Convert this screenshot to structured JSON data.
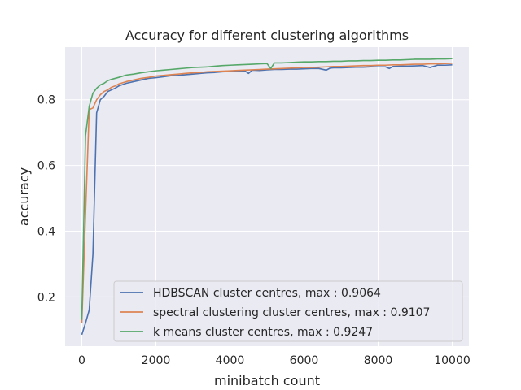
{
  "chart_data": {
    "type": "line",
    "title": "Accuracy for different clustering algorithms",
    "xlabel": "minibatch count",
    "ylabel": "accuracy",
    "xlim": [
      -450,
      10450
    ],
    "ylim": [
      0.05,
      0.96
    ],
    "xticks": [
      0,
      2000,
      4000,
      6000,
      8000,
      10000
    ],
    "xtick_labels": [
      "0",
      "2000",
      "4000",
      "6000",
      "8000",
      "10000"
    ],
    "yticks": [
      0.2,
      0.4,
      0.6,
      0.8
    ],
    "ytick_labels": [
      "0.2",
      "0.4",
      "0.6",
      "0.8"
    ],
    "grid": true,
    "legend_position": "lower-right",
    "series": [
      {
        "name": "HDBSCAN cluster centres, max : 0.9064",
        "color": "#4c72b0",
        "x": [
          0,
          100,
          200,
          300,
          400,
          500,
          600,
          700,
          800,
          900,
          1000,
          1200,
          1400,
          1600,
          1800,
          2000,
          2200,
          2400,
          2600,
          2800,
          3000,
          3200,
          3400,
          3600,
          3800,
          4000,
          4200,
          4400,
          4500,
          4600,
          4800,
          5000,
          5200,
          5400,
          5600,
          5800,
          6000,
          6200,
          6400,
          6600,
          6700,
          6800,
          7000,
          7200,
          7400,
          7600,
          7800,
          8000,
          8200,
          8300,
          8400,
          8600,
          8800,
          9000,
          9200,
          9400,
          9600,
          9800,
          10000
        ],
        "y": [
          0.085,
          0.12,
          0.16,
          0.33,
          0.76,
          0.8,
          0.81,
          0.825,
          0.83,
          0.835,
          0.842,
          0.85,
          0.855,
          0.86,
          0.865,
          0.867,
          0.87,
          0.873,
          0.874,
          0.876,
          0.878,
          0.88,
          0.882,
          0.883,
          0.885,
          0.886,
          0.887,
          0.888,
          0.88,
          0.89,
          0.889,
          0.891,
          0.892,
          0.892,
          0.893,
          0.893,
          0.894,
          0.895,
          0.895,
          0.89,
          0.896,
          0.897,
          0.897,
          0.898,
          0.899,
          0.899,
          0.9,
          0.9,
          0.9,
          0.895,
          0.901,
          0.902,
          0.902,
          0.903,
          0.904,
          0.898,
          0.905,
          0.905,
          0.906
        ]
      },
      {
        "name": "spectral clustering cluster centres, max : 0.9107",
        "color": "#dd8452",
        "x": [
          0,
          100,
          200,
          300,
          400,
          500,
          600,
          700,
          800,
          900,
          1000,
          1200,
          1400,
          1600,
          1800,
          2000,
          2200,
          2400,
          2600,
          2800,
          3000,
          3200,
          3400,
          3600,
          3800,
          4000,
          4200,
          4400,
          4600,
          4800,
          5000,
          5200,
          5400,
          5600,
          5800,
          6000,
          6200,
          6400,
          6600,
          6800,
          7000,
          7200,
          7400,
          7600,
          7800,
          8000,
          8200,
          8400,
          8600,
          8800,
          9000,
          9200,
          9400,
          9600,
          9800,
          10000
        ],
        "y": [
          0.12,
          0.45,
          0.77,
          0.775,
          0.8,
          0.815,
          0.825,
          0.83,
          0.838,
          0.842,
          0.848,
          0.855,
          0.86,
          0.865,
          0.868,
          0.872,
          0.874,
          0.876,
          0.878,
          0.88,
          0.882,
          0.883,
          0.885,
          0.886,
          0.887,
          0.888,
          0.889,
          0.89,
          0.891,
          0.892,
          0.893,
          0.894,
          0.895,
          0.896,
          0.897,
          0.898,
          0.898,
          0.899,
          0.9,
          0.901,
          0.901,
          0.902,
          0.903,
          0.904,
          0.904,
          0.905,
          0.905,
          0.906,
          0.906,
          0.907,
          0.908,
          0.908,
          0.909,
          0.909,
          0.91,
          0.911
        ]
      },
      {
        "name": "k means cluster centres, max : 0.9247",
        "color": "#55a868",
        "x": [
          0,
          100,
          200,
          300,
          400,
          500,
          600,
          700,
          800,
          900,
          1000,
          1200,
          1400,
          1600,
          1800,
          2000,
          2200,
          2400,
          2600,
          2800,
          3000,
          3200,
          3400,
          3600,
          3800,
          4000,
          4200,
          4400,
          4600,
          4800,
          5000,
          5100,
          5200,
          5400,
          5600,
          5800,
          6000,
          6200,
          6400,
          6600,
          6800,
          7000,
          7200,
          7400,
          7600,
          7800,
          8000,
          8200,
          8400,
          8600,
          8800,
          9000,
          9200,
          9400,
          9600,
          9800,
          10000
        ],
        "y": [
          0.13,
          0.69,
          0.78,
          0.82,
          0.835,
          0.845,
          0.85,
          0.858,
          0.862,
          0.865,
          0.868,
          0.875,
          0.878,
          0.882,
          0.885,
          0.888,
          0.89,
          0.892,
          0.894,
          0.896,
          0.898,
          0.899,
          0.9,
          0.902,
          0.904,
          0.905,
          0.906,
          0.907,
          0.908,
          0.909,
          0.91,
          0.895,
          0.912,
          0.912,
          0.913,
          0.914,
          0.915,
          0.915,
          0.916,
          0.916,
          0.917,
          0.917,
          0.918,
          0.918,
          0.919,
          0.919,
          0.92,
          0.92,
          0.921,
          0.921,
          0.922,
          0.923,
          0.923,
          0.923,
          0.924,
          0.924,
          0.925
        ]
      }
    ]
  }
}
